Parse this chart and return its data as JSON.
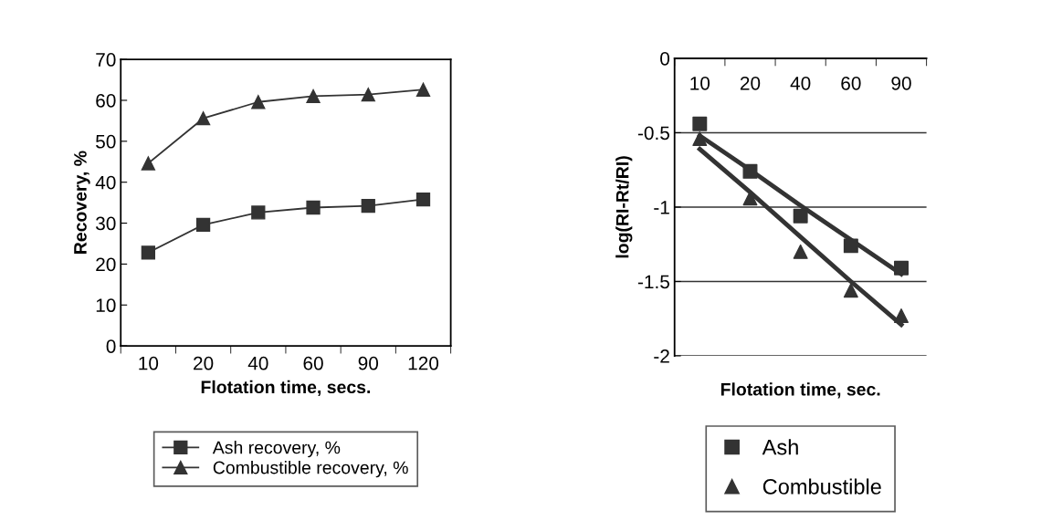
{
  "chart_data": [
    {
      "type": "line",
      "xlabel": "Flotation time, secs.",
      "ylabel": "Recovery, %",
      "categories": [
        "10",
        "20",
        "40",
        "60",
        "90",
        "120"
      ],
      "series": [
        {
          "name": "Ash recovery, %",
          "color": "#333333",
          "marker": "square",
          "values": [
            22.8,
            29.6,
            32.6,
            33.8,
            34.2,
            35.8
          ]
        },
        {
          "name": "Combustible recovery, %",
          "color": "#333333",
          "marker": "triangle",
          "values": [
            44.6,
            55.6,
            59.6,
            61.0,
            61.4,
            62.6
          ]
        }
      ],
      "ylim": [
        0,
        70
      ],
      "yticks": [
        0,
        10,
        20,
        30,
        40,
        50,
        60,
        70
      ],
      "grid": false,
      "legend": "bottom",
      "marker": "circle",
      "line_style": "solid"
    },
    {
      "type": "scatter",
      "xlabel": "Flotation time, sec.",
      "ylabel": "log(RI-Rt/RI)",
      "categories": [
        "10",
        "20",
        "40",
        "60",
        "90"
      ],
      "series": [
        {
          "name": "Ash",
          "color": "#333333",
          "marker": "square",
          "values": [
            -0.44,
            -0.76,
            -1.06,
            -1.26,
            -1.41
          ]
        },
        {
          "name": "Combustible",
          "color": "#333333",
          "marker": "triangle",
          "values": [
            -0.54,
            -0.94,
            -1.3,
            -1.56,
            -1.73
          ]
        },
        {
          "type": "line",
          "color": "#333333",
          "values": [
            -0.52,
            -0.75,
            -0.99,
            -1.22,
            -1.45
          ]
        },
        {
          "type": "line",
          "color": "#333333",
          "values": [
            -0.61,
            -0.9,
            -1.2,
            -1.5,
            -1.79
          ]
        }
      ],
      "ylim": [
        -2,
        0
      ],
      "yticks": [
        {
          "value": -2,
          "label": "-2"
        },
        {
          "value": -1.5,
          "label": "-1.5"
        },
        {
          "value": -1,
          "label": "-1"
        },
        {
          "value": -0.5,
          "label": "-0.5"
        },
        0
      ],
      "grid": "y",
      "legend": "bottom",
      "marker": "none"
    }
  ]
}
